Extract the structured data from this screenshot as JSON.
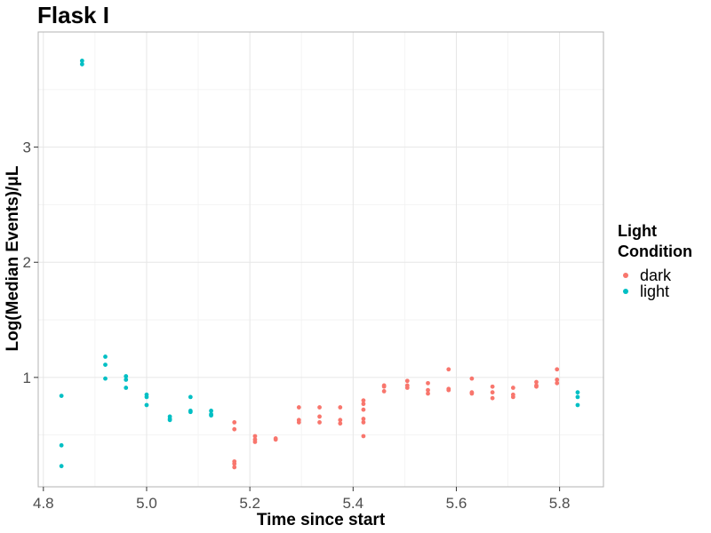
{
  "chart_data": {
    "type": "scatter",
    "title": "Flask I",
    "xlabel": "Time since start",
    "ylabel": "Log(Median Events)/μL",
    "xlim": [
      4.79,
      5.885
    ],
    "ylim": [
      0.05,
      4.0
    ],
    "x_ticks": [
      4.8,
      5.0,
      5.2,
      5.4,
      5.6,
      5.8
    ],
    "x_tick_labels": [
      "4.8",
      "5.0",
      "5.2",
      "5.4",
      "5.6",
      "5.8"
    ],
    "y_ticks": [
      1,
      2,
      3
    ],
    "y_tick_labels": [
      "1",
      "2",
      "3"
    ],
    "grid": true,
    "legend": {
      "title_lines": [
        "Light",
        "Condition"
      ],
      "placement": "right",
      "entries": [
        "dark",
        "light"
      ]
    },
    "series": [
      {
        "name": "dark",
        "color": "#F8766D",
        "points": [
          [
            5.17,
            0.61
          ],
          [
            5.17,
            0.55
          ],
          [
            5.17,
            0.27
          ],
          [
            5.17,
            0.25
          ],
          [
            5.17,
            0.22
          ],
          [
            5.21,
            0.49
          ],
          [
            5.21,
            0.46
          ],
          [
            5.21,
            0.44
          ],
          [
            5.25,
            0.47
          ],
          [
            5.25,
            0.46
          ],
          [
            5.295,
            0.74
          ],
          [
            5.295,
            0.63
          ],
          [
            5.295,
            0.61
          ],
          [
            5.335,
            0.74
          ],
          [
            5.335,
            0.66
          ],
          [
            5.335,
            0.61
          ],
          [
            5.375,
            0.74
          ],
          [
            5.375,
            0.63
          ],
          [
            5.375,
            0.6
          ],
          [
            5.42,
            0.8
          ],
          [
            5.42,
            0.77
          ],
          [
            5.42,
            0.72
          ],
          [
            5.42,
            0.64
          ],
          [
            5.42,
            0.61
          ],
          [
            5.42,
            0.49
          ],
          [
            5.46,
            0.93
          ],
          [
            5.46,
            0.92
          ],
          [
            5.46,
            0.88
          ],
          [
            5.505,
            0.97
          ],
          [
            5.505,
            0.93
          ],
          [
            5.505,
            0.91
          ],
          [
            5.545,
            0.95
          ],
          [
            5.545,
            0.89
          ],
          [
            5.545,
            0.86
          ],
          [
            5.585,
            1.07
          ],
          [
            5.585,
            0.9
          ],
          [
            5.585,
            0.89
          ],
          [
            5.63,
            0.99
          ],
          [
            5.63,
            0.87
          ],
          [
            5.63,
            0.86
          ],
          [
            5.67,
            0.92
          ],
          [
            5.67,
            0.87
          ],
          [
            5.67,
            0.82
          ],
          [
            5.71,
            0.91
          ],
          [
            5.71,
            0.85
          ],
          [
            5.71,
            0.83
          ],
          [
            5.755,
            0.96
          ],
          [
            5.755,
            0.93
          ],
          [
            5.755,
            0.92
          ],
          [
            5.795,
            1.07
          ],
          [
            5.795,
            0.98
          ],
          [
            5.795,
            0.95
          ]
        ]
      },
      {
        "name": "light",
        "color": "#00BFC4",
        "points": [
          [
            4.835,
            0.84
          ],
          [
            4.835,
            0.41
          ],
          [
            4.835,
            0.23
          ],
          [
            4.875,
            3.75
          ],
          [
            4.875,
            3.72
          ],
          [
            4.92,
            1.18
          ],
          [
            4.92,
            1.11
          ],
          [
            4.92,
            0.99
          ],
          [
            4.96,
            1.01
          ],
          [
            4.96,
            0.98
          ],
          [
            4.96,
            0.91
          ],
          [
            5.0,
            0.85
          ],
          [
            5.0,
            0.83
          ],
          [
            5.0,
            0.76
          ],
          [
            5.045,
            0.66
          ],
          [
            5.045,
            0.64
          ],
          [
            5.045,
            0.63
          ],
          [
            5.085,
            0.83
          ],
          [
            5.085,
            0.71
          ],
          [
            5.085,
            0.7
          ],
          [
            5.125,
            0.71
          ],
          [
            5.125,
            0.68
          ],
          [
            5.125,
            0.67
          ],
          [
            5.835,
            0.87
          ],
          [
            5.835,
            0.83
          ],
          [
            5.835,
            0.76
          ]
        ]
      }
    ]
  }
}
